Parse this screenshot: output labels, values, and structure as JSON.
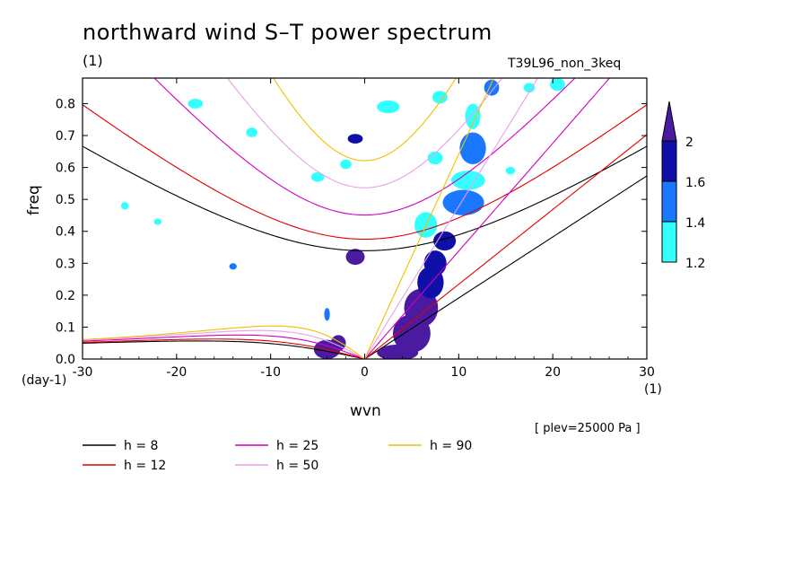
{
  "title": "northward wind S–T power spectrum",
  "subtitle_left": "(1)",
  "subtitle_right": "T39L96_non_3keq",
  "note": "[ plev=25000 Pa ]",
  "chart_data": {
    "type": "heatmap",
    "xlabel": "wvn",
    "ylabel": "freq",
    "x_unit": "(1)",
    "y_unit": "(day-1)",
    "xlim": [
      -30,
      30
    ],
    "ylim": [
      0.0,
      0.88
    ],
    "x_ticks": [
      "-30",
      "-20",
      "-10",
      "0",
      "10",
      "20",
      "30"
    ],
    "x_tick_values": [
      -30,
      -20,
      -10,
      0,
      10,
      20,
      30
    ],
    "y_ticks": [
      "0.0",
      "0.1",
      "0.2",
      "0.3",
      "0.4",
      "0.5",
      "0.6",
      "0.7",
      "0.8"
    ],
    "y_tick_values": [
      0.0,
      0.1,
      0.2,
      0.3,
      0.4,
      0.5,
      0.6,
      0.7,
      0.8
    ],
    "colorbar": {
      "levels": [
        "1.2",
        "1.4",
        "1.6",
        "2"
      ],
      "level_values": [
        1.2,
        1.4,
        1.6,
        2.0
      ],
      "colors": [
        "#33ffff",
        "#1a78ff",
        "#1010a8",
        "#4a1aa0"
      ]
    },
    "dispersion_curves": [
      {
        "name": "h =  8",
        "h": 8,
        "color": "#000000"
      },
      {
        "name": "h = 12",
        "h": 12,
        "color": "#e00000"
      },
      {
        "name": "h = 25",
        "h": 25,
        "color": "#d000c0"
      },
      {
        "name": "h = 50",
        "h": 50,
        "color": "#e8a0e8"
      },
      {
        "name": "h = 90",
        "h": 90,
        "color": "#f0c000"
      }
    ],
    "patches": [
      {
        "x": 3.5,
        "y": 0.02,
        "rx": 2.2,
        "ry": 0.025,
        "level": 3
      },
      {
        "x": 5.0,
        "y": 0.08,
        "rx": 2.0,
        "ry": 0.06,
        "level": 3
      },
      {
        "x": 6.0,
        "y": 0.16,
        "rx": 1.8,
        "ry": 0.06,
        "level": 3
      },
      {
        "x": 7.0,
        "y": 0.24,
        "rx": 1.4,
        "ry": 0.05,
        "level": 2
      },
      {
        "x": 7.5,
        "y": 0.3,
        "rx": 1.2,
        "ry": 0.04,
        "level": 2
      },
      {
        "x": 8.5,
        "y": 0.37,
        "rx": 1.2,
        "ry": 0.03,
        "level": 2
      },
      {
        "x": 10.5,
        "y": 0.49,
        "rx": 2.2,
        "ry": 0.04,
        "level": 1
      },
      {
        "x": 11.0,
        "y": 0.56,
        "rx": 1.8,
        "ry": 0.03,
        "level": 0
      },
      {
        "x": 11.5,
        "y": 0.66,
        "rx": 1.4,
        "ry": 0.05,
        "level": 1
      },
      {
        "x": 11.5,
        "y": 0.76,
        "rx": 0.8,
        "ry": 0.04,
        "level": 0
      },
      {
        "x": 13.5,
        "y": 0.85,
        "rx": 0.8,
        "ry": 0.025,
        "level": 1
      },
      {
        "x": 6.5,
        "y": 0.42,
        "rx": 1.2,
        "ry": 0.04,
        "level": 0
      },
      {
        "x": -4.0,
        "y": 0.03,
        "rx": 1.4,
        "ry": 0.03,
        "level": 3
      },
      {
        "x": -2.8,
        "y": 0.05,
        "rx": 0.8,
        "ry": 0.025,
        "level": 3
      },
      {
        "x": -4.0,
        "y": 0.14,
        "rx": 0.3,
        "ry": 0.02,
        "level": 1
      },
      {
        "x": -1.0,
        "y": 0.32,
        "rx": 1.0,
        "ry": 0.025,
        "level": 3
      },
      {
        "x": -1.0,
        "y": 0.69,
        "rx": 0.8,
        "ry": 0.015,
        "level": 2
      },
      {
        "x": -2.0,
        "y": 0.61,
        "rx": 0.6,
        "ry": 0.015,
        "level": 0
      },
      {
        "x": -5.0,
        "y": 0.57,
        "rx": 0.7,
        "ry": 0.015,
        "level": 0
      },
      {
        "x": -12.0,
        "y": 0.71,
        "rx": 0.6,
        "ry": 0.015,
        "level": 0
      },
      {
        "x": -18.0,
        "y": 0.8,
        "rx": 0.8,
        "ry": 0.015,
        "level": 0
      },
      {
        "x": 2.5,
        "y": 0.79,
        "rx": 1.2,
        "ry": 0.02,
        "level": 0
      },
      {
        "x": 7.5,
        "y": 0.63,
        "rx": 0.8,
        "ry": 0.02,
        "level": 0
      },
      {
        "x": 17.5,
        "y": 0.85,
        "rx": 0.6,
        "ry": 0.015,
        "level": 0
      },
      {
        "x": 20.5,
        "y": 0.86,
        "rx": 0.8,
        "ry": 0.02,
        "level": 0
      },
      {
        "x": -14.0,
        "y": 0.29,
        "rx": 0.4,
        "ry": 0.01,
        "level": 1
      },
      {
        "x": -22.0,
        "y": 0.43,
        "rx": 0.4,
        "ry": 0.01,
        "level": 0
      },
      {
        "x": -25.5,
        "y": 0.48,
        "rx": 0.4,
        "ry": 0.012,
        "level": 0
      },
      {
        "x": 15.5,
        "y": 0.59,
        "rx": 0.5,
        "ry": 0.012,
        "level": 0
      },
      {
        "x": 8.0,
        "y": 0.82,
        "rx": 0.8,
        "ry": 0.02,
        "level": 0
      }
    ]
  }
}
